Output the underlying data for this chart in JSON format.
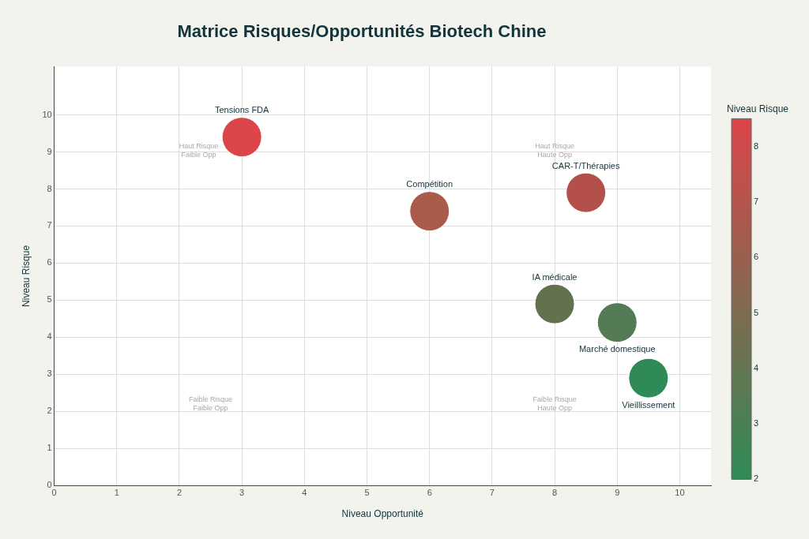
{
  "chart_data": {
    "type": "bubble",
    "title": "Matrice Risques/Opportunités Biotech Chine",
    "xlabel": "Niveau Opportunité",
    "ylabel": "Niveau Risque",
    "clabel": "Niveau Risque",
    "xlim": [
      0,
      10.5
    ],
    "ylim": [
      0,
      11.3
    ],
    "xticks": [
      0,
      1,
      2,
      3,
      4,
      5,
      6,
      7,
      8,
      9,
      10
    ],
    "yticks": [
      0,
      1,
      2,
      3,
      4,
      5,
      6,
      7,
      8,
      9,
      10
    ],
    "grid": true,
    "legend": false,
    "clim": [
      2,
      8.5
    ],
    "cticks": [
      2,
      3,
      4,
      5,
      6,
      7,
      8
    ],
    "series": [
      {
        "name": "Tensions FDA",
        "color": "#dc4549",
        "x": [
          3
        ],
        "values": [
          9.4
        ],
        "sizes": [
          1
        ],
        "cvalues": [
          8.5
        ]
      },
      {
        "name": "Compétition",
        "color": "#a95c4c",
        "x": [
          6
        ],
        "values": [
          7.4
        ],
        "sizes": [
          1
        ],
        "cvalues": [
          6.5
        ]
      },
      {
        "name": "CAR-T/Thérapies",
        "color": "#b4504a",
        "x": [
          8.5
        ],
        "values": [
          7.9
        ],
        "sizes": [
          1
        ],
        "cvalues": [
          7
        ]
      },
      {
        "name": "IA médicale",
        "color": "#64714f",
        "x": [
          8
        ],
        "values": [
          4.9
        ],
        "sizes": [
          1
        ],
        "cvalues": [
          4.2
        ]
      },
      {
        "name": "Marché domestique",
        "color": "#557a56",
        "x": [
          9
        ],
        "values": [
          4.4
        ],
        "sizes": [
          1
        ],
        "cvalues": [
          3.5
        ]
      },
      {
        "name": "Vieillissement",
        "color": "#2e8b57",
        "x": [
          9.5
        ],
        "values": [
          2.9
        ],
        "sizes": [
          1
        ],
        "cvalues": [
          2
        ]
      }
    ],
    "annotations": [
      "Haut Risque\nFaible Opp",
      "Haut Risque\nHaute Opp",
      "Faible Risque\nFaible Opp",
      "Faible Risque\nHaute Opp"
    ]
  }
}
